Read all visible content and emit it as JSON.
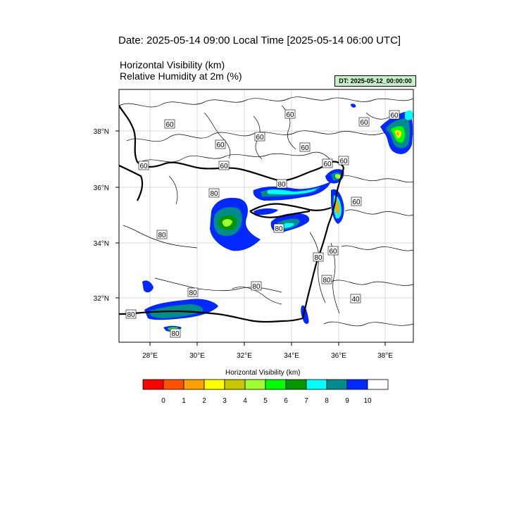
{
  "header": {
    "date_title": "Date: 2025-05-14  09:00 Local Time [2025-05-14  06:00 UTC]",
    "variable_line_1": "Horizontal Visibility   (km)",
    "variable_line_2": "Relative Humidity at 2m   (%)",
    "dt_badge": "DT: 2025-05-12_00:00:00",
    "dt_badge_color": "#c8f0c8"
  },
  "map": {
    "lat_labels": [
      "38°N",
      "36°N",
      "34°N",
      "32°N"
    ],
    "lon_labels": [
      "28°E",
      "30°E",
      "32°E",
      "34°E",
      "36°E",
      "38°E"
    ],
    "contour_labels": [
      "60",
      "60",
      "60",
      "60",
      "60",
      "60",
      "60",
      "60",
      "60",
      "80",
      "80",
      "80",
      "80",
      "80",
      "80",
      "80",
      "60",
      "60",
      "60",
      "40",
      "80",
      "80",
      "60",
      "80"
    ]
  },
  "legend": {
    "title": "Horizontal Visibility  (km)",
    "tick_labels": [
      "0",
      "1",
      "2",
      "3",
      "4",
      "5",
      "6",
      "7",
      "8",
      "9",
      "10"
    ],
    "colors": [
      "#ff0000",
      "#ff5000",
      "#ffa000",
      "#ffff00",
      "#c8c800",
      "#a0ff30",
      "#00ff00",
      "#009600",
      "#00ffff",
      "#008c8c",
      "#0028ff",
      "#ffffff"
    ]
  }
}
